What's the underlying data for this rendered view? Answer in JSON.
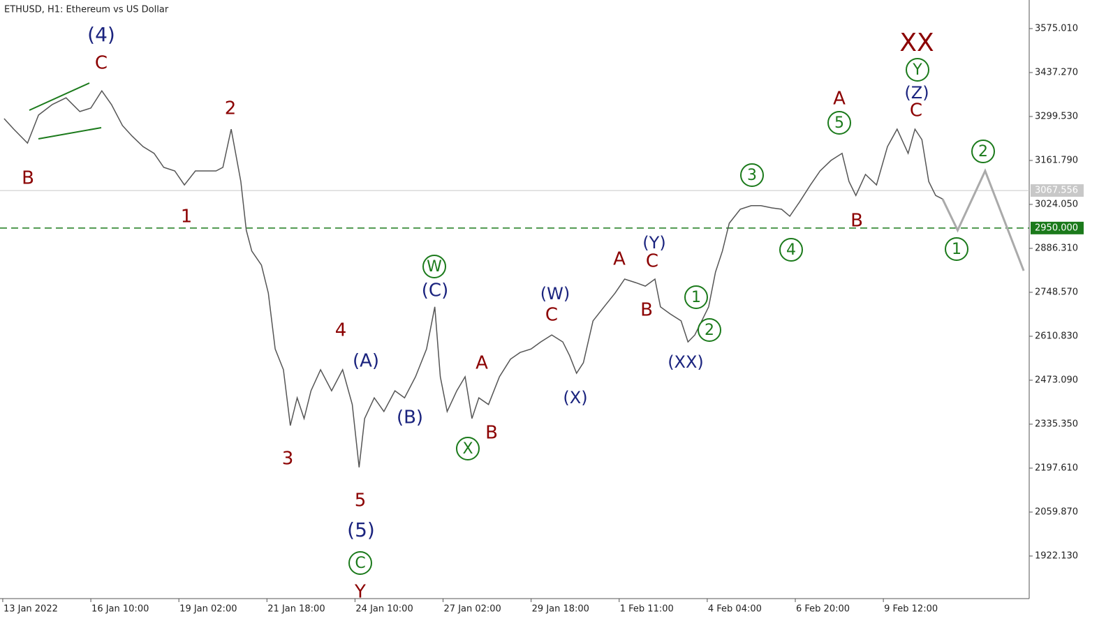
{
  "chart_data": {
    "type": "line",
    "title": "ETHUSD, H1:  Ethereum vs US Dollar",
    "xlim": [
      -2,
      746
    ],
    "ylim": [
      1788.7,
      3664.6
    ],
    "yticks": [
      {
        "value": 3575.01,
        "label": "3575.010"
      },
      {
        "value": 3437.27,
        "label": "3437.270"
      },
      {
        "value": 3299.53,
        "label": "3299.530"
      },
      {
        "value": 3161.79,
        "label": "3161.790"
      },
      {
        "value": 3024.05,
        "label": "3024.050"
      },
      {
        "value": 2886.31,
        "label": "2886.310"
      },
      {
        "value": 2748.57,
        "label": "2748.570"
      },
      {
        "value": 2610.83,
        "label": "2610.830"
      },
      {
        "value": 2473.09,
        "label": "2473.090"
      },
      {
        "value": 2335.35,
        "label": "2335.350"
      },
      {
        "value": 2197.61,
        "label": "2197.610"
      },
      {
        "value": 2059.87,
        "label": "2059.870"
      },
      {
        "value": 1922.13,
        "label": "1922.130"
      }
    ],
    "xticks": [
      {
        "value": 0,
        "label": "13 Jan 2022"
      },
      {
        "value": 64,
        "label": "16 Jan 10:00"
      },
      {
        "value": 128,
        "label": "19 Jan 02:00"
      },
      {
        "value": 192,
        "label": "21 Jan 18:00"
      },
      {
        "value": 256,
        "label": "24 Jan 10:00"
      },
      {
        "value": 320,
        "label": "27 Jan 02:00"
      },
      {
        "value": 384,
        "label": "29 Jan 18:00"
      },
      {
        "value": 448,
        "label": "1 Feb 11:00"
      },
      {
        "value": 512,
        "label": "4 Feb 04:00"
      },
      {
        "value": 576,
        "label": "6 Feb 20:00"
      },
      {
        "value": 640,
        "label": "9 Feb 12:00"
      }
    ],
    "series": [
      {
        "name": "price",
        "color": "#555555",
        "x": [
          1,
          8,
          18,
          26,
          36,
          46,
          56,
          64,
          72,
          79,
          87,
          94,
          102,
          110,
          117,
          125,
          132,
          140,
          148,
          155,
          160,
          166,
          173,
          177,
          181,
          188,
          193,
          198,
          204,
          209,
          214,
          219,
          224,
          231,
          239,
          247,
          254,
          259,
          263,
          270,
          277,
          285,
          292,
          300,
          308,
          314,
          318,
          323,
          330,
          336,
          341,
          346,
          353,
          361,
          369,
          376,
          384,
          391,
          399,
          407,
          412,
          417,
          422,
          429,
          437,
          445,
          452,
          460,
          467,
          474,
          478,
          485,
          493,
          498,
          503,
          508,
          513,
          518,
          523,
          528,
          536,
          544,
          551,
          559,
          566,
          572,
          579,
          587,
          594,
          602,
          610,
          615,
          620,
          627,
          635,
          643,
          650,
          658,
          663,
          668,
          673,
          678,
          683
        ],
        "values": [
          3293,
          3260,
          3216,
          3304,
          3337,
          3358,
          3315,
          3326,
          3380,
          3337,
          3271,
          3238,
          3205,
          3184,
          3140,
          3129,
          3085,
          3129,
          3129,
          3129,
          3140,
          3260,
          3096,
          2943,
          2878,
          2834,
          2746,
          2571,
          2506,
          2331,
          2418,
          2353,
          2440,
          2506,
          2440,
          2506,
          2397,
          2200,
          2353,
          2418,
          2375,
          2440,
          2418,
          2484,
          2571,
          2703,
          2484,
          2375,
          2440,
          2484,
          2353,
          2418,
          2397,
          2484,
          2539,
          2560,
          2571,
          2593,
          2615,
          2593,
          2550,
          2495,
          2528,
          2659,
          2703,
          2746,
          2790,
          2779,
          2768,
          2790,
          2703,
          2681,
          2659,
          2593,
          2615,
          2659,
          2703,
          2812,
          2878,
          2965,
          3009,
          3020,
          3020,
          3013,
          3009,
          2987,
          3031,
          3085,
          3129,
          3162,
          3184,
          3096,
          3052,
          3118,
          3085,
          3205,
          3260,
          3184,
          3260,
          3227,
          3096,
          3052,
          3041
        ]
      },
      {
        "name": "forecast",
        "color": "#aaaaaa",
        "x": [
          683,
          694,
          714,
          742
        ],
        "values": [
          3041,
          2943,
          3129,
          2816
        ]
      }
    ],
    "levels": [
      {
        "value": 3067.556,
        "color": "#c8c8c8"
      },
      {
        "value": {
          "value": 2950,
          "label": "2950.000"
        },
        "color": "#1b7a1b"
      }
    ],
    "annotations": [
      {
        "text": "(4)",
        "color": "#1a237e"
      },
      {
        "text": "C",
        "color": "#8b0000"
      },
      {
        "text": "B",
        "color": "#8b0000"
      },
      {
        "text": "2",
        "color": "#8b0000"
      },
      {
        "text": "1",
        "color": "#8b0000"
      },
      {
        "text": "3",
        "color": "#8b0000"
      },
      {
        "text": "4",
        "color": "#8b0000"
      },
      {
        "text": "5",
        "color": "#8b0000"
      },
      {
        "text": "(5)",
        "color": "#1a237e"
      },
      {
        "text": "C",
        "color": "#1b7a1b",
        "circled": true
      },
      {
        "text": "Y",
        "color": "#8b0000"
      },
      {
        "text": "(A)",
        "color": "#1a237e"
      },
      {
        "text": "(B)",
        "color": "#1a237e"
      },
      {
        "text": "W",
        "color": "#1b7a1b",
        "circled": true
      },
      {
        "text": "(C)",
        "color": "#1a237e"
      },
      {
        "text": "A",
        "color": "#8b0000"
      },
      {
        "text": "X",
        "color": "#1b7a1b",
        "circled": true
      },
      {
        "text": "B",
        "color": "#8b0000"
      },
      {
        "text": "(W)",
        "color": "#1a237e"
      },
      {
        "text": "C",
        "color": "#8b0000"
      },
      {
        "text": "(X)",
        "color": "#1a237e"
      },
      {
        "text": "A",
        "color": "#8b0000"
      },
      {
        "text": "(Y)",
        "color": "#1a237e"
      },
      {
        "text": "C",
        "color": "#8b0000"
      },
      {
        "text": "B",
        "color": "#8b0000"
      },
      {
        "text": "(XX)",
        "color": "#1a237e"
      },
      {
        "text": "1",
        "color": "#1b7a1b",
        "circled": true
      },
      {
        "text": "2",
        "color": "#1b7a1b",
        "circled": true
      },
      {
        "text": "3",
        "color": "#1b7a1b",
        "circled": true
      },
      {
        "text": "4",
        "color": "#1b7a1b",
        "circled": true
      },
      {
        "text": "A",
        "color": "#8b0000"
      },
      {
        "text": "5",
        "color": "#1b7a1b",
        "circled": true
      },
      {
        "text": "B",
        "color": "#8b0000"
      },
      {
        "text": "XX",
        "color": "#8b0000"
      },
      {
        "text": "Y",
        "color": "#1b7a1b",
        "circled": true
      },
      {
        "text": "(Z)",
        "color": "#1a237e"
      },
      {
        "text": "C",
        "color": "#8b0000"
      },
      {
        "text": "2",
        "color": "#1b7a1b",
        "circled": true
      },
      {
        "text": "1",
        "color": "#1b7a1b",
        "circled": true
      }
    ]
  }
}
